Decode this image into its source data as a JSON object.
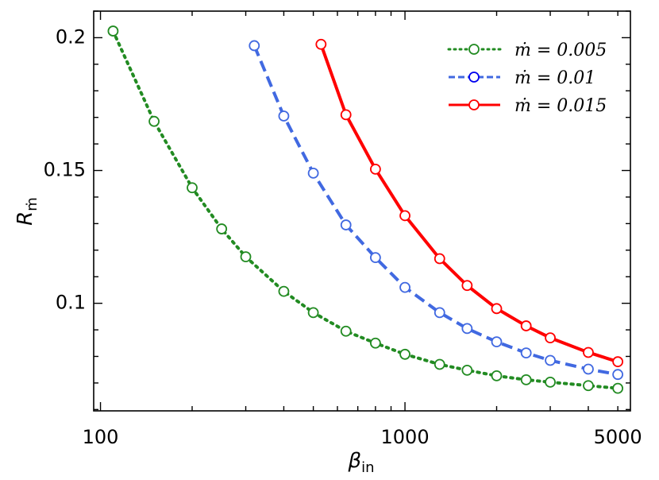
{
  "chart_data": {
    "type": "line",
    "title": "",
    "xlabel": {
      "main": "β",
      "sub": "in"
    },
    "ylabel": {
      "main": "R",
      "sub": "ṁ"
    },
    "xscale": "log",
    "xlim": [
      95,
      5500
    ],
    "ylim": [
      0.0595,
      0.21
    ],
    "xticks": [
      100,
      1000,
      5000
    ],
    "xtick_labels": [
      "100",
      "1000",
      "5000"
    ],
    "yticks": [
      0.1,
      0.15,
      0.2
    ],
    "ytick_labels": [
      "0.1",
      "0.15",
      "0.2"
    ],
    "grid": false,
    "legend_position": "top-right",
    "series": [
      {
        "name": "ṁ = 0.005",
        "legend_label": "ṁ = 0.005",
        "color": "#228B22",
        "style": "dotted",
        "x": [
          110,
          150,
          200,
          250,
          300,
          400,
          500,
          640,
          800,
          1000,
          1300,
          1600,
          2000,
          2500,
          3000,
          4000,
          5000
        ],
        "y": [
          0.2025,
          0.1685,
          0.1435,
          0.128,
          0.1175,
          0.1045,
          0.0965,
          0.0895,
          0.085,
          0.0808,
          0.077,
          0.0748,
          0.0727,
          0.0712,
          0.0703,
          0.069,
          0.068
        ]
      },
      {
        "name": "ṁ = 0.01",
        "legend_label": "ṁ = 0.01",
        "color": "#4169E1",
        "style": "dashed",
        "x": [
          320,
          400,
          500,
          640,
          800,
          1000,
          1300,
          1600,
          2000,
          2500,
          3000,
          4000,
          5000
        ],
        "y": [
          0.197,
          0.1705,
          0.149,
          0.1295,
          0.1172,
          0.106,
          0.0965,
          0.0905,
          0.0855,
          0.0813,
          0.0785,
          0.0752,
          0.0732
        ]
      },
      {
        "name": "ṁ = 0.015",
        "legend_label": "ṁ = 0.015",
        "color": "#FF0000",
        "style": "solid",
        "x": [
          530,
          640,
          800,
          1000,
          1300,
          1600,
          2000,
          2500,
          3000,
          4000,
          5000
        ],
        "y": [
          0.1975,
          0.171,
          0.1505,
          0.133,
          0.1168,
          0.1067,
          0.098,
          0.0915,
          0.087,
          0.0815,
          0.078
        ]
      }
    ]
  }
}
